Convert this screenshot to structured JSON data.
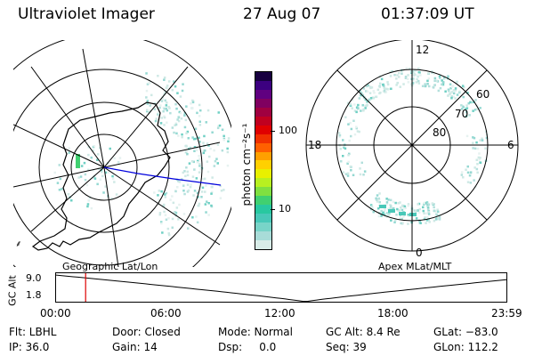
{
  "header": {
    "instrument": "Ultraviolet Imager",
    "date": "27 Aug 07",
    "time": "01:37:09 UT"
  },
  "left_panel": {
    "caption": "Geographic Lat/Lon"
  },
  "right_panel": {
    "caption": "Apex MLat/MLT",
    "mlt_labels": [
      "12",
      "18",
      "6",
      "0"
    ],
    "lat_labels": [
      "60",
      "70",
      "80"
    ]
  },
  "colorbar": {
    "unit_label": "photon cm⁻²s⁻¹",
    "tick_labels": [
      "100",
      "10"
    ],
    "colors": [
      "#d8ece8",
      "#a8dcd8",
      "#78d4c8",
      "#48c8b8",
      "#28c8a0",
      "#40d070",
      "#80e040",
      "#b8f020",
      "#e8f000",
      "#ffd000",
      "#ffa000",
      "#ff6000",
      "#f03000",
      "#e00000",
      "#c00020",
      "#a00040",
      "#800060",
      "#600080",
      "#3c0080",
      "#180040"
    ]
  },
  "altitude_strip": {
    "axis_title": "GC Alt",
    "y_ticks": [
      "9.0",
      "1.8"
    ],
    "x_ticks": [
      "00:00",
      "06:00",
      "12:00",
      "18:00",
      "23:59"
    ],
    "marker_time": "01:37"
  },
  "status": {
    "col1": [
      "Flt: LBHL",
      "IP: 36.0"
    ],
    "col2": [
      "Door: Closed",
      "Gain: 14"
    ],
    "col3": [
      "Mode: Normal",
      "Dsp:     0.0"
    ],
    "col4": [
      "GC Alt: 8.4 Re",
      "Seq: 39"
    ],
    "col5": [
      "GLat: −83.0",
      "GLon: 112.2"
    ]
  }
}
